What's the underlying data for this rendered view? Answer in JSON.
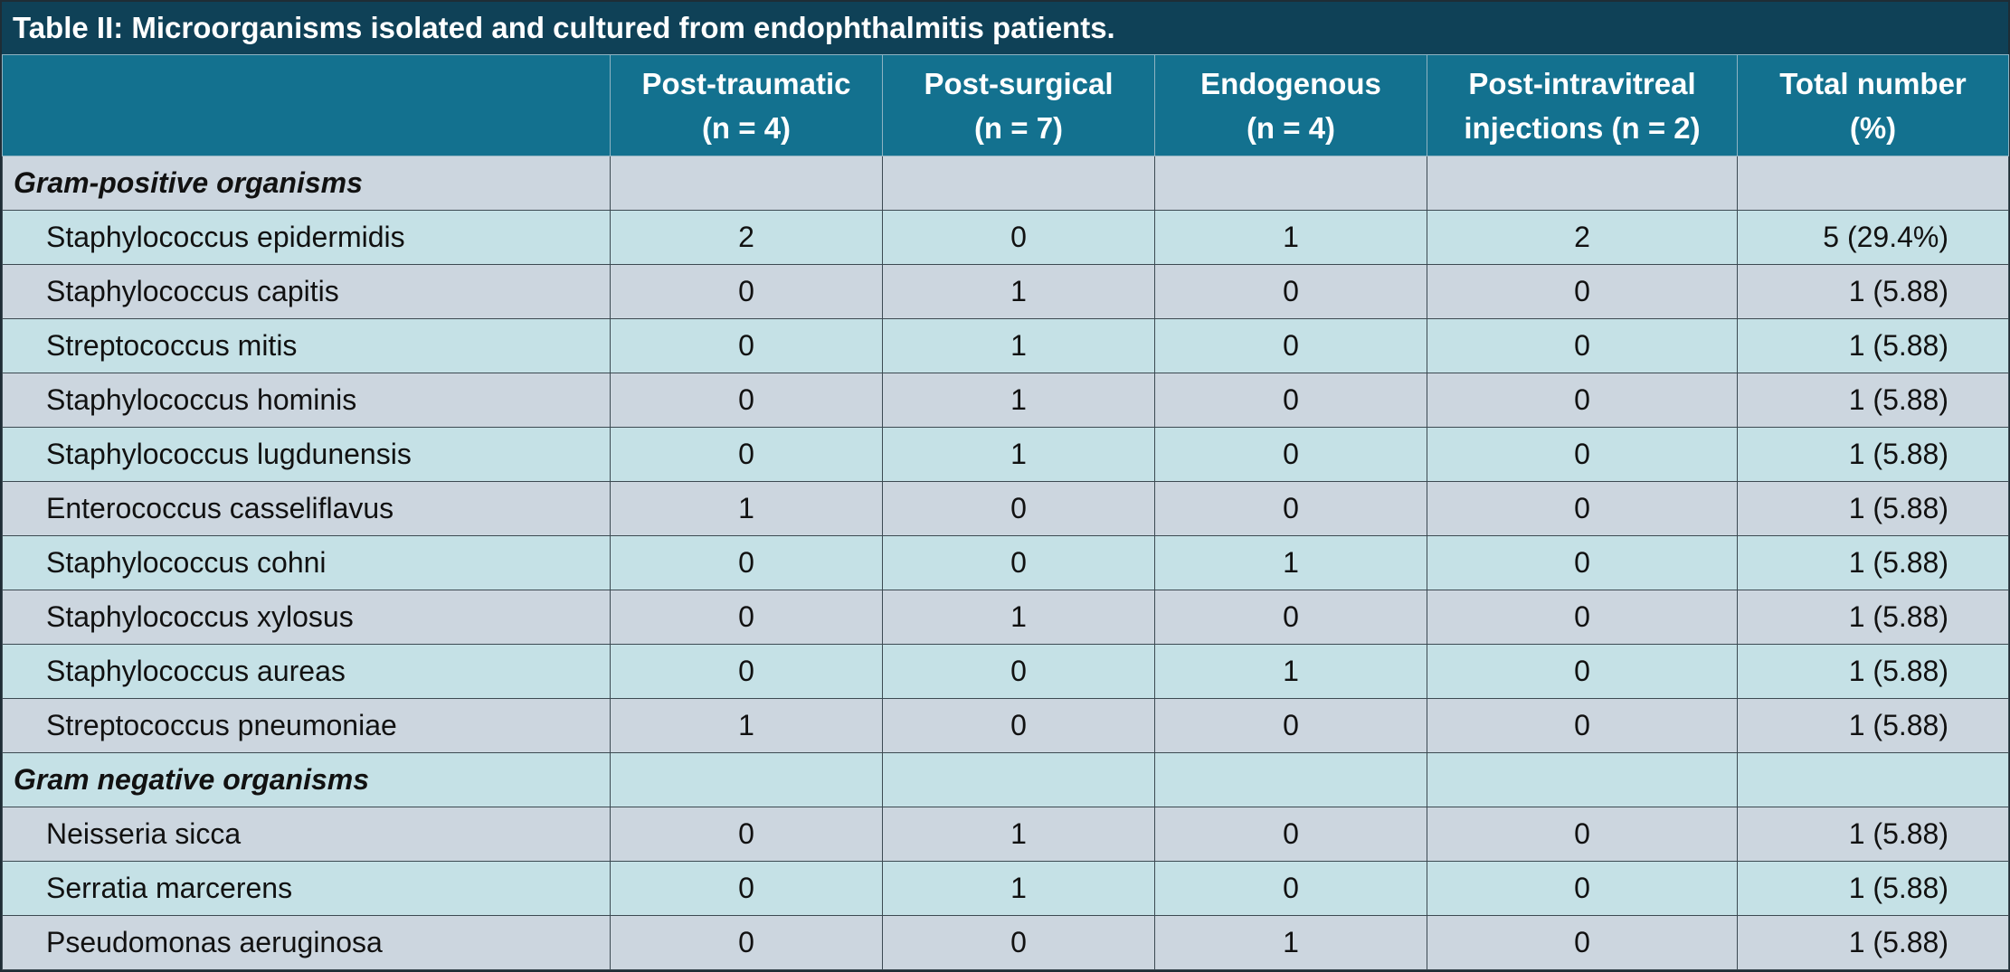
{
  "title": "Table II: Microorganisms isolated and cultured from endophthalmitis patients.",
  "headers": [
    {
      "line1": "",
      "line2": ""
    },
    {
      "line1": "Post-traumatic",
      "line2": "(n = 4)"
    },
    {
      "line1": "Post-surgical",
      "line2": "(n = 7)"
    },
    {
      "line1": "Endogenous",
      "line2": "(n = 4)"
    },
    {
      "line1": "Post-intravitreal",
      "line2": "injections (n = 2)"
    },
    {
      "line1": "Total number",
      "line2": "(%)"
    }
  ],
  "rows": [
    {
      "type": "section",
      "name": "Gram-positive organisms"
    },
    {
      "type": "data",
      "name": "Staphylococcus epidermidis",
      "post_traumatic": "2",
      "post_surgical": "0",
      "endogenous": "1",
      "post_intravitreal": "2",
      "total": "5 (29.4%)"
    },
    {
      "type": "data",
      "name": "Staphylococcus capitis",
      "post_traumatic": "0",
      "post_surgical": "1",
      "endogenous": "0",
      "post_intravitreal": "0",
      "total": "1 (5.88)"
    },
    {
      "type": "data",
      "name": "Streptococcus mitis",
      "post_traumatic": "0",
      "post_surgical": "1",
      "endogenous": "0",
      "post_intravitreal": "0",
      "total": "1 (5.88)"
    },
    {
      "type": "data",
      "name": "Staphylococcus hominis",
      "post_traumatic": "0",
      "post_surgical": "1",
      "endogenous": "0",
      "post_intravitreal": "0",
      "total": "1 (5.88)"
    },
    {
      "type": "data",
      "name": "Staphylococcus lugdunensis",
      "post_traumatic": "0",
      "post_surgical": "1",
      "endogenous": "0",
      "post_intravitreal": "0",
      "total": "1 (5.88)"
    },
    {
      "type": "data",
      "name": "Enterococcus casseliflavus",
      "post_traumatic": "1",
      "post_surgical": "0",
      "endogenous": "0",
      "post_intravitreal": "0",
      "total": "1 (5.88)"
    },
    {
      "type": "data",
      "name": "Staphylococcus cohni",
      "post_traumatic": "0",
      "post_surgical": "0",
      "endogenous": "1",
      "post_intravitreal": "0",
      "total": "1 (5.88)"
    },
    {
      "type": "data",
      "name": "Staphylococcus xylosus",
      "post_traumatic": "0",
      "post_surgical": "1",
      "endogenous": "0",
      "post_intravitreal": "0",
      "total": "1 (5.88)"
    },
    {
      "type": "data",
      "name": "Staphylococcus aureas",
      "post_traumatic": "0",
      "post_surgical": "0",
      "endogenous": "1",
      "post_intravitreal": "0",
      "total": "1 (5.88)"
    },
    {
      "type": "data",
      "name": "Streptococcus pneumoniae",
      "post_traumatic": "1",
      "post_surgical": "0",
      "endogenous": "0",
      "post_intravitreal": "0",
      "total": "1 (5.88)"
    },
    {
      "type": "section",
      "name": "Gram negative organisms"
    },
    {
      "type": "data",
      "name": "Neisseria sicca",
      "post_traumatic": "0",
      "post_surgical": "1",
      "endogenous": "0",
      "post_intravitreal": "0",
      "total": "1 (5.88)"
    },
    {
      "type": "data",
      "name": "Serratia marcerens",
      "post_traumatic": "0",
      "post_surgical": "1",
      "endogenous": "0",
      "post_intravitreal": "0",
      "total": "1 (5.88)"
    },
    {
      "type": "data",
      "name": "Pseudomonas aeruginosa",
      "post_traumatic": "0",
      "post_surgical": "0",
      "endogenous": "1",
      "post_intravitreal": "0",
      "total": "1 (5.88)"
    }
  ],
  "colors": {
    "title_bg": "#0f4157",
    "header_bg": "#13718f",
    "row_odd": "#ccd6df",
    "row_even": "#c5e1e6"
  }
}
